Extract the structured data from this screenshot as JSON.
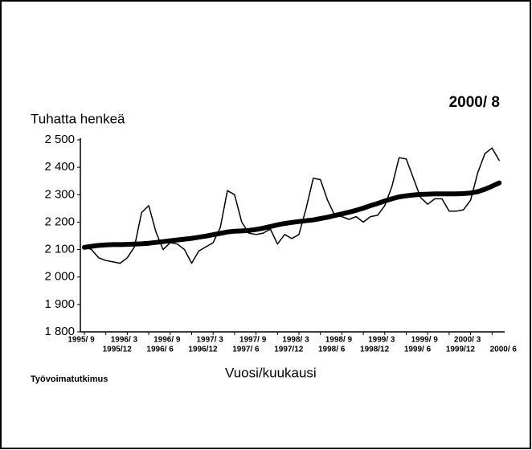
{
  "chart_data": {
    "type": "line",
    "title": "2000/ 8",
    "y_label": "Tuhatta henkeä",
    "x_label": "Vuosi/kuukausi",
    "source": "Työvoimatutkimus",
    "categories": [
      "1995/ 9",
      null,
      null,
      "1995/12",
      null,
      null,
      "1996/ 3",
      null,
      null,
      "1996/ 6",
      null,
      null,
      "1996/ 9",
      null,
      null,
      "1996/12",
      null,
      null,
      "1997/ 3",
      null,
      null,
      "1997/ 6",
      null,
      null,
      "1997/ 9",
      null,
      null,
      "1997/12",
      null,
      null,
      "1998/ 3",
      null,
      null,
      "1998/ 6",
      null,
      null,
      "1998/ 9",
      null,
      null,
      "1998/12",
      null,
      null,
      "1999/ 3",
      null,
      null,
      "1999/ 6",
      null,
      null,
      "1999/ 9",
      null,
      null,
      "1999/12",
      null,
      null,
      "2000/ 3",
      null,
      null,
      "2000/ 6",
      null
    ],
    "series": [
      {
        "color": "#000000",
        "width": 1.5,
        "values": [
          2110,
          2100,
          2070,
          2060,
          2055,
          2050,
          2070,
          2110,
          2235,
          2260,
          2165,
          2100,
          2125,
          2120,
          2100,
          2050,
          2095,
          2110,
          2125,
          2180,
          2315,
          2300,
          2200,
          2160,
          2155,
          2160,
          2175,
          2120,
          2155,
          2140,
          2155,
          2250,
          2360,
          2355,
          2280,
          2225,
          2220,
          2210,
          2220,
          2200,
          2220,
          2225,
          2260,
          2330,
          2435,
          2430,
          2360,
          2290,
          2265,
          2285,
          2285,
          2240,
          2240,
          2245,
          2280,
          2380,
          2450,
          2470,
          2425
        ]
      },
      {
        "color": "#000000",
        "width": 6,
        "values": [
          2108,
          2112,
          2115,
          2117,
          2118,
          2118,
          2119,
          2120,
          2121,
          2123,
          2126,
          2129,
          2132,
          2135,
          2138,
          2141,
          2145,
          2149,
          2154,
          2159,
          2164,
          2167,
          2168,
          2170,
          2173,
          2178,
          2184,
          2190,
          2195,
          2199,
          2202,
          2205,
          2208,
          2213,
          2218,
          2224,
          2230,
          2236,
          2243,
          2251,
          2260,
          2268,
          2277,
          2285,
          2292,
          2296,
          2299,
          2301,
          2302,
          2303,
          2303,
          2303,
          2303,
          2304,
          2306,
          2311,
          2320,
          2331,
          2343
        ]
      }
    ],
    "ylim": [
      1800,
      2500
    ],
    "yticks": [
      {
        "value": 1800,
        "label": "1 800"
      },
      {
        "value": 1900,
        "label": "1 900"
      },
      {
        "value": 2000,
        "label": "2 000"
      },
      {
        "value": 2100,
        "label": "2 100"
      },
      {
        "value": 2200,
        "label": "2 200"
      },
      {
        "value": 2300,
        "label": "2 300"
      },
      {
        "value": 2400,
        "label": "2 400"
      },
      {
        "value": 2500,
        "label": "2 500"
      }
    ]
  }
}
